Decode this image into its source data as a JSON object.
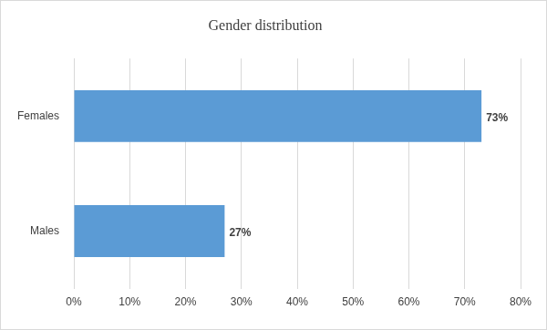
{
  "chart_data": {
    "type": "bar",
    "orientation": "horizontal",
    "title": "Gender distribution",
    "categories": [
      "Females",
      "Males"
    ],
    "values": [
      73,
      27
    ],
    "value_labels": [
      "73%",
      "27%"
    ],
    "data_labels": true,
    "color": "#5b9bd5",
    "xlim": [
      0,
      80
    ],
    "xticks": [
      {
        "value": 0,
        "label": "0%"
      },
      {
        "value": 10,
        "label": "10%"
      },
      {
        "value": 20,
        "label": "20%"
      },
      {
        "value": 30,
        "label": "30%"
      },
      {
        "value": 40,
        "label": "40%"
      },
      {
        "value": 50,
        "label": "50%"
      },
      {
        "value": 60,
        "label": "60%"
      },
      {
        "value": 70,
        "label": "70%"
      },
      {
        "value": 80,
        "label": "80%"
      }
    ],
    "grid": true
  }
}
